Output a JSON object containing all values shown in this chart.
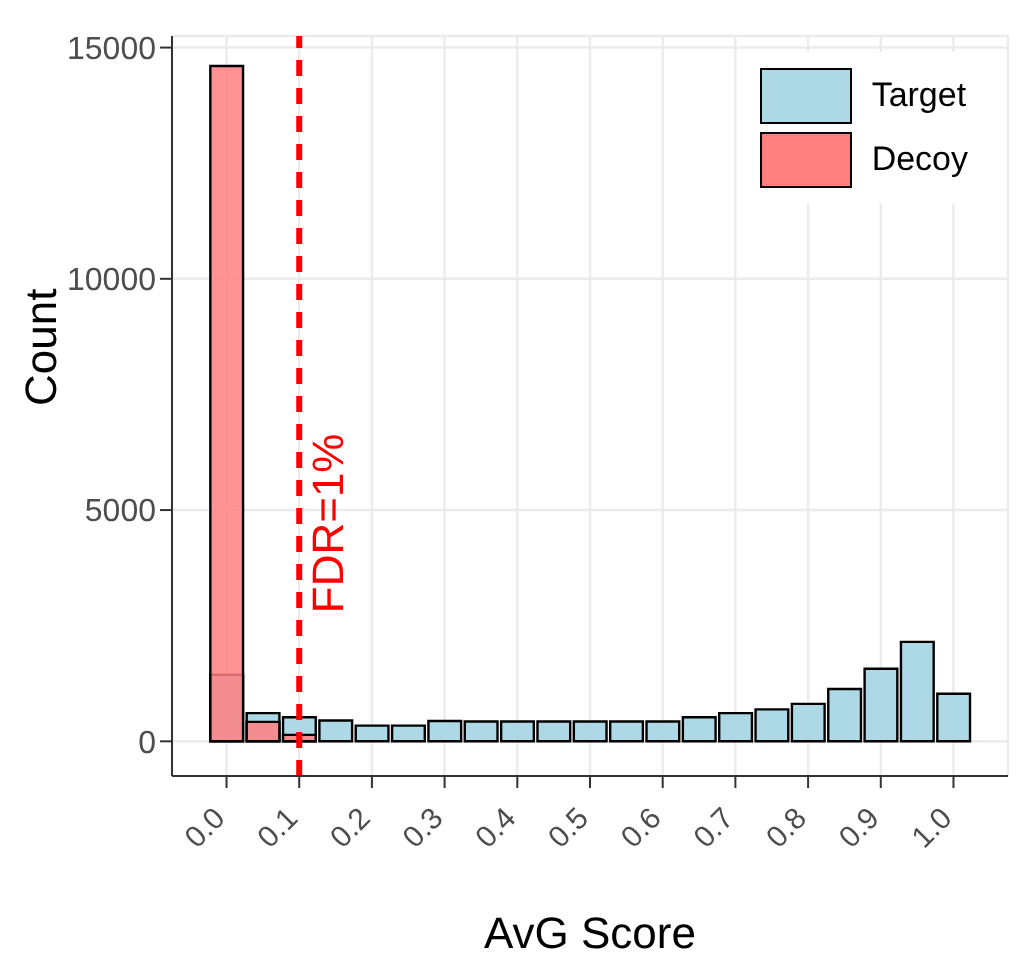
{
  "chart_data": {
    "type": "histogram",
    "xlabel": "AvG Score",
    "ylabel": "Count",
    "bins": [
      -0.025,
      0.025,
      0.075,
      0.125,
      0.175,
      0.225,
      0.275,
      0.325,
      0.375,
      0.425,
      0.475,
      0.525,
      0.575,
      0.625,
      0.675,
      0.725,
      0.775,
      0.825,
      0.875,
      0.925,
      0.975,
      1.025
    ],
    "series": [
      {
        "name": "Target",
        "color": "#add8e6",
        "values": [
          1440,
          610,
          520,
          450,
          340,
          340,
          440,
          430,
          430,
          430,
          430,
          430,
          430,
          520,
          610,
          690,
          810,
          1130,
          1570,
          2150,
          1030
        ]
      },
      {
        "name": "Decoy",
        "color": "#ff7f7f",
        "values": [
          14600,
          420,
          140,
          0,
          0,
          0,
          0,
          0,
          0,
          0,
          0,
          0,
          0,
          0,
          0,
          0,
          0,
          0,
          0,
          0,
          0
        ]
      }
    ],
    "xlim": [
      -0.075,
      1.075
    ],
    "xticks": [
      {
        "value": 0,
        "label": "0.0"
      },
      {
        "value": 0.1,
        "label": "0.1"
      },
      {
        "value": 0.2,
        "label": "0.2"
      },
      {
        "value": 0.3,
        "label": "0.3"
      },
      {
        "value": 0.4,
        "label": "0.4"
      },
      {
        "value": 0.5,
        "label": "0.5"
      },
      {
        "value": 0.6,
        "label": "0.6"
      },
      {
        "value": 0.7,
        "label": "0.7"
      },
      {
        "value": 0.8,
        "label": "0.8"
      },
      {
        "value": 0.9,
        "label": "0.9"
      },
      {
        "value": 1,
        "label": "1.0"
      }
    ],
    "ylim": [
      -750,
      15250
    ],
    "yticks": [
      0,
      5000,
      10000,
      15000
    ],
    "ref_lines": [
      {
        "axis": "x",
        "value": 0.1,
        "color": "#ff0000",
        "line_style": "dashed"
      }
    ],
    "annotations": [
      "FDR=1%"
    ],
    "grid": true,
    "legend": "top right"
  }
}
